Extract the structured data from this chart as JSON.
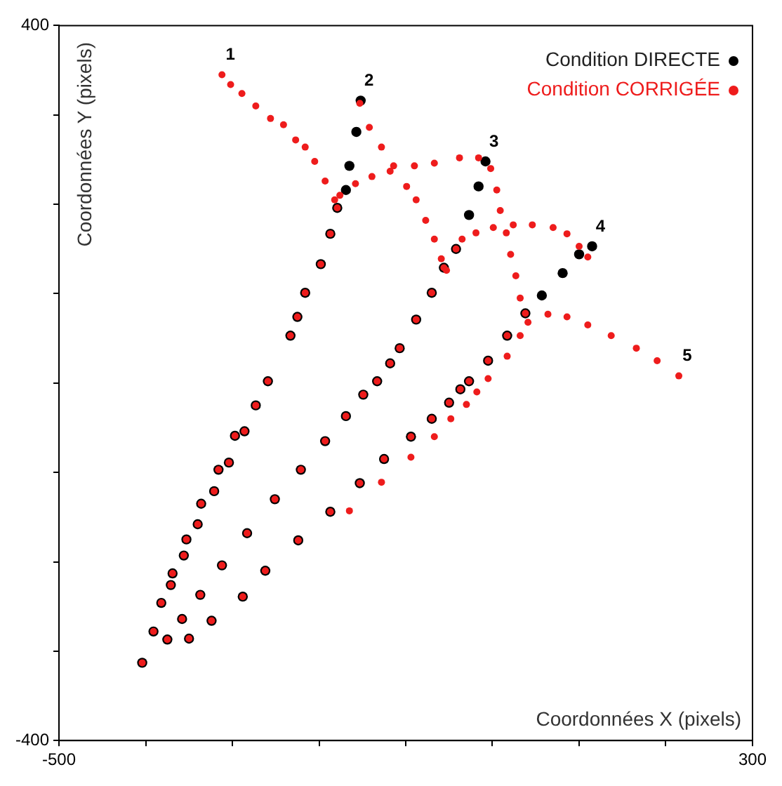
{
  "chart_data": {
    "type": "scatter",
    "xlabel": "Coordonnées X (pixels)",
    "ylabel": "Coordonnées Y (pixels)",
    "xlim": [
      -500,
      300
    ],
    "ylim": [
      -400,
      400
    ],
    "xticks": [
      -500,
      {
        "value": -400,
        "label": null
      },
      {
        "value": -300,
        "label": null
      },
      {
        "value": -200,
        "label": null
      },
      {
        "value": -100,
        "label": null
      },
      {
        "value": 0,
        "label": null
      },
      {
        "value": 100,
        "label": null
      },
      {
        "value": 200,
        "label": null
      },
      300
    ],
    "yticks": [
      -400,
      {
        "value": -300,
        "label": null
      },
      {
        "value": -200,
        "label": null
      },
      {
        "value": -100,
        "label": null
      },
      {
        "value": 0,
        "label": null
      },
      {
        "value": 100,
        "label": null
      },
      {
        "value": 200,
        "label": null
      },
      {
        "value": 300,
        "label": null
      },
      400
    ],
    "legend": "top right",
    "marker": "circle",
    "grid": false,
    "series": [
      {
        "name": "Condition DIRECTE",
        "color": "#000000",
        "x": [
          -404,
          -391,
          -382,
          -371,
          -369,
          -356,
          -353,
          -340,
          -336,
          -321,
          -316,
          -304,
          -297,
          -286,
          -273,
          -259,
          -233,
          -225,
          -216,
          -198,
          -187,
          -179,
          -169,
          -165,
          -157,
          -152,
          -375,
          -358,
          -337,
          -312,
          -283,
          -251,
          -221,
          -193,
          -169,
          -149,
          -133,
          -118,
          -107,
          -88,
          -70,
          -56,
          -42,
          -27,
          -16,
          -8,
          -350,
          -324,
          -288,
          -262,
          -224,
          -187,
          -153,
          -125,
          -94,
          -70,
          -50,
          -37,
          -27,
          -5,
          17,
          38,
          57,
          81,
          100,
          115
        ],
        "values": [
          -313,
          -278,
          -246,
          -226,
          -213,
          -193,
          -175,
          -158,
          -135,
          -121,
          -97,
          -89,
          -59,
          -54,
          -25,
          2,
          53,
          74,
          101,
          133,
          167,
          196,
          216,
          243,
          281,
          316,
          -287,
          -264,
          -237,
          -204,
          -168,
          -130,
          -97,
          -65,
          -37,
          -13,
          2,
          22,
          39,
          71,
          101,
          129,
          150,
          188,
          220,
          248,
          -286,
          -266,
          -239,
          -210,
          -176,
          -144,
          -112,
          -85,
          -60,
          -40,
          -22,
          -7,
          2,
          25,
          53,
          78,
          98,
          123,
          144,
          153
        ]
      },
      {
        "name": "Condition CORRIGÉE",
        "color": "#ee1c1c",
        "x": [
          -404,
          -391,
          -382,
          -371,
          -369,
          -356,
          -353,
          -340,
          -336,
          -321,
          -316,
          -304,
          -297,
          -286,
          -273,
          -259,
          -233,
          -225,
          -216,
          -198,
          -187,
          -179,
          -375,
          -358,
          -337,
          -312,
          -283,
          -251,
          -221,
          -193,
          -169,
          -149,
          -133,
          -118,
          -107,
          -88,
          -70,
          -56,
          -42,
          -350,
          -324,
          -288,
          -262,
          -224,
          -187,
          -153,
          -125,
          -94,
          -70,
          -50,
          -37,
          -27,
          -5,
          17,
          38,
          -165,
          -128,
          -94,
          -67,
          -48,
          -30,
          -18,
          -5,
          17,
          32,
          41,
          64,
          86,
          110,
          137,
          166,
          190,
          215,
          -182,
          -193,
          -205,
          -216,
          -227,
          -241,
          -256,
          -273,
          -289,
          -302,
          -312,
          -153,
          -142,
          -128,
          -114,
          -99,
          -88,
          -77,
          -67,
          -59,
          -53,
          -176,
          -158,
          -139,
          -118,
          -90,
          -67,
          -38,
          -16,
          -2,
          5,
          9,
          16,
          21,
          27,
          32,
          -35,
          -19,
          1,
          24,
          46,
          70,
          86,
          100,
          110
        ],
        "values": [
          -313,
          -278,
          -246,
          -226,
          -213,
          -193,
          -175,
          -158,
          -135,
          -121,
          -97,
          -89,
          -59,
          -54,
          -25,
          2,
          53,
          74,
          101,
          133,
          167,
          196,
          -287,
          -264,
          -237,
          -204,
          -168,
          -130,
          -97,
          -65,
          -37,
          -13,
          2,
          22,
          39,
          71,
          101,
          129,
          150,
          -286,
          -266,
          -239,
          -210,
          -176,
          -144,
          -112,
          -85,
          -60,
          -40,
          -22,
          -7,
          2,
          25,
          53,
          78,
          -143,
          -111,
          -83,
          -60,
          -40,
          -24,
          -10,
          5,
          30,
          53,
          68,
          77,
          74,
          65,
          53,
          39,
          25,
          8,
          205,
          226,
          248,
          264,
          272,
          289,
          296,
          310,
          324,
          334,
          345,
          313,
          286,
          264,
          243,
          220,
          205,
          182,
          161,
          139,
          126,
          210,
          223,
          231,
          237,
          243,
          246,
          252,
          252,
          240,
          216,
          193,
          168,
          144,
          120,
          95,
          161,
          168,
          174,
          177,
          177,
          174,
          167,
          153,
          141
        ]
      }
    ],
    "annotations": [
      {
        "text": "1",
        "x": -312,
        "y": 345
      },
      {
        "text": "2",
        "x": -152,
        "y": 316
      },
      {
        "text": "3",
        "x": -8,
        "y": 248
      },
      {
        "text": "4",
        "x": 115,
        "y": 153
      },
      {
        "text": "5",
        "x": 215,
        "y": 8
      }
    ]
  }
}
